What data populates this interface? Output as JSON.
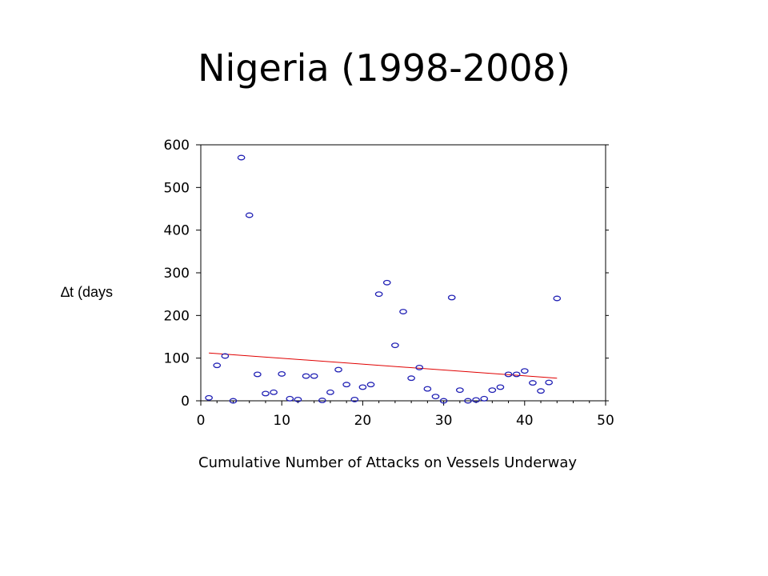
{
  "title": "Nigeria (1998-2008)",
  "chart_data": {
    "type": "scatter",
    "title": "Nigeria (1998-2008)",
    "xlabel": "Cumulative Number of Attacks on Vessels Underway",
    "ylabel": "∆t (days",
    "xlim": [
      0,
      50
    ],
    "ylim": [
      0,
      600
    ],
    "xticks": [
      0,
      10,
      20,
      30,
      40,
      50
    ],
    "yticks": [
      0,
      100,
      200,
      300,
      400,
      500,
      600
    ],
    "grid": false,
    "legend": "none",
    "point_color": "#1f1fb4",
    "trend_color": "#e00000",
    "points": {
      "x": [
        1,
        2,
        3,
        4,
        5,
        6,
        7,
        8,
        9,
        10,
        11,
        12,
        13,
        14,
        15,
        16,
        17,
        18,
        19,
        20,
        21,
        22,
        23,
        24,
        25,
        26,
        27,
        28,
        29,
        30,
        31,
        32,
        33,
        34,
        35,
        36,
        37,
        38,
        39,
        40,
        41,
        42,
        43,
        44
      ],
      "y": [
        7,
        83,
        105,
        0,
        570,
        435,
        62,
        17,
        20,
        63,
        5,
        3,
        58,
        58,
        1,
        20,
        73,
        38,
        3,
        32,
        38,
        250,
        277,
        130,
        209,
        53,
        78,
        28,
        10,
        0,
        242,
        25,
        0,
        2,
        5,
        25,
        32,
        62,
        62,
        70,
        42,
        23,
        43,
        240
      ]
    },
    "trend_line": {
      "x": [
        1,
        44
      ],
      "y": [
        112,
        53
      ]
    }
  }
}
